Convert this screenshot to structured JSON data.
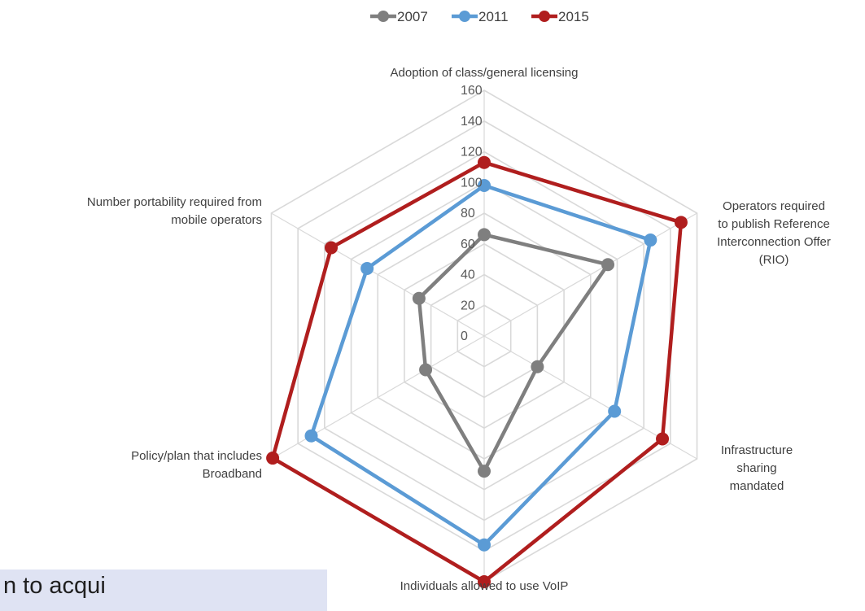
{
  "chart_data": {
    "type": "radar",
    "title": "",
    "axes": [
      [
        "Adoption of class/general licensing"
      ],
      [
        "Operators required",
        "to publish Reference",
        "Interconnection Offer",
        "(RIO)"
      ],
      [
        "Infrastructure",
        "sharing",
        "mandated"
      ],
      [
        "Individuals allowed to use VoIP"
      ],
      [
        "Policy/plan that includes",
        "Broadband"
      ],
      [
        "Number portability required from",
        "mobile operators"
      ]
    ],
    "rlim": [
      0,
      160
    ],
    "ticks": [
      "0",
      "20",
      "40",
      "60",
      "80",
      "100",
      "120",
      "140",
      "160"
    ],
    "grid": true,
    "legend_position": "top",
    "series": [
      {
        "name": "2007",
        "color": "#7f7f7f",
        "values": [
          66,
          93,
          40,
          88,
          44,
          49
        ]
      },
      {
        "name": "2011",
        "color": "#5b9bd5",
        "values": [
          98,
          125,
          98,
          136,
          130,
          88
        ]
      },
      {
        "name": "2015",
        "color": "#b01e1e",
        "values": [
          113,
          148,
          134,
          160,
          159,
          115
        ]
      }
    ]
  },
  "overlay": {
    "text": "n to acqui"
  }
}
